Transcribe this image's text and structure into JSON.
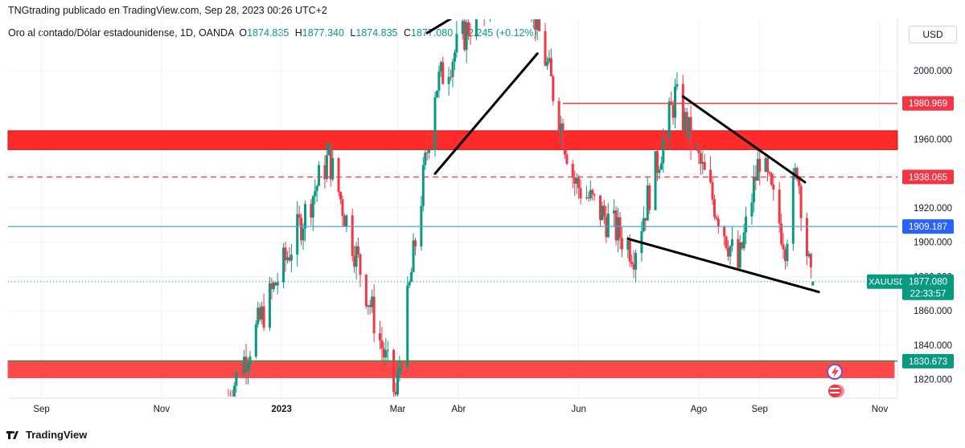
{
  "header": {
    "published": "TNGtrading publicado en TradingView.com, Sep 28, 2023 00:26 UTC+2"
  },
  "legend": {
    "symbol": "Oro al contado/Dólar estadounidense, 1D, OANDA",
    "o_label": "O",
    "o_value": "1874.835",
    "h_label": "H",
    "h_value": "1877.340",
    "l_label": "L",
    "l_value": "1874.835",
    "c_label": "C",
    "c_value": "1877.080",
    "change": "+2.245 (+0.12%)"
  },
  "currency_button": "USD",
  "footer": {
    "brand": "TradingView"
  },
  "colors": {
    "up": "#089981",
    "down": "#f23645",
    "zone": "#ff2a2a",
    "support_line": "#4ca0e6",
    "resistance_line": "#e8404a",
    "green_line": "#2e9b4a"
  },
  "chart_data": {
    "type": "candlestick",
    "title": "Oro al contado/Dólar estadounidense, 1D, OANDA",
    "ylim": [
      1810,
      2030
    ],
    "y_ticks": [
      1820,
      1840,
      1860,
      1880,
      1900,
      1920,
      1940,
      1960,
      2000
    ],
    "y_tick_labels": [
      "1820.000",
      "1840.000",
      "1860.000",
      "1880.000",
      "1900.000",
      "1920.000",
      "1940.000",
      "1960.000",
      "2000.000"
    ],
    "x_tick_labels": [
      "Sep",
      "Nov",
      "2023",
      "Mar",
      "Abr",
      "Jun",
      "Ago",
      "Sep",
      "Nov"
    ],
    "grid": true,
    "price_labels": [
      {
        "label": "1980.969",
        "value": 1980.969,
        "color": "#f23645"
      },
      {
        "label": "1938.065",
        "value": 1938.065,
        "color": "#f23645"
      },
      {
        "label": "1909.187",
        "value": 1909.187,
        "color": "#2962ff"
      },
      {
        "label": "1830.673",
        "value": 1830.673,
        "color": "#089981"
      }
    ],
    "current": {
      "symbol": "XAUUSD",
      "price": "1877.080",
      "countdown": "22:33:57",
      "value": 1877.08
    },
    "zones": [
      {
        "from": 1954,
        "to": 1965,
        "note": "resistance zone"
      },
      {
        "from": 1821,
        "to": 1831,
        "note": "support zone"
      }
    ],
    "key_points": [
      {
        "date": "2022-12-05",
        "value": 1810
      },
      {
        "date": "2023-01-25",
        "value": 1950
      },
      {
        "date": "2023-02-28",
        "value": 1810
      },
      {
        "date": "2023-03-20",
        "value": 1990
      },
      {
        "date": "2023-04-13",
        "value": 2040
      },
      {
        "date": "2023-05-04",
        "value": 2060
      },
      {
        "date": "2023-05-30",
        "value": 1935
      },
      {
        "date": "2023-06-29",
        "value": 1895
      },
      {
        "date": "2023-07-20",
        "value": 1985
      },
      {
        "date": "2023-08-21",
        "value": 1885
      },
      {
        "date": "2023-09-01",
        "value": 1950
      },
      {
        "date": "2023-09-14",
        "value": 1900
      },
      {
        "date": "2023-09-20",
        "value": 1945
      },
      {
        "date": "2023-09-27",
        "value": 1875
      },
      {
        "date": "2023-09-28",
        "value": 1877
      }
    ]
  }
}
